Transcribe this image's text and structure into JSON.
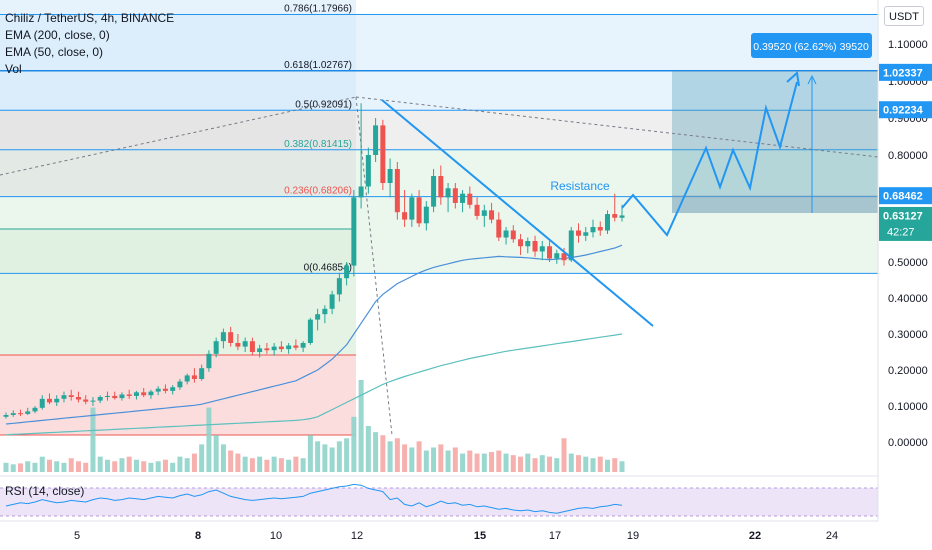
{
  "header": {
    "symbol_line": "Chiliz / TetherUS, 4h, BINANCE",
    "ema200": "EMA (200, close, 0)",
    "ema50": "EMA (50, close, 0)",
    "vol": "Vol",
    "currency_button": "USDT"
  },
  "rsi": {
    "label": "RSI (14, close)"
  },
  "colors": {
    "up": "#26a69a",
    "down": "#ef5350",
    "drawing": "#2196f3",
    "ema50": "#4a90d9",
    "ema200": "#5bc0be",
    "rsi_line": "#2196f3"
  },
  "annotations": {
    "resistance": "Resistance",
    "measure_box": "0.39520 (62.62%) 39520",
    "countdown": "42:27"
  },
  "chart_data": {
    "type": "candlestick",
    "title": "Chiliz / TetherUS, 4h, BINANCE",
    "x_ticks": [
      "5",
      "8",
      "10",
      "12",
      "15",
      "17",
      "19",
      "22",
      "24"
    ],
    "y_ticks": [
      "1.10000",
      "1.00000",
      "0.90000",
      "0.80000",
      "0.50000",
      "0.40000",
      "0.30000",
      "0.20000",
      "0.10000",
      "0.00000"
    ],
    "fibonacci": [
      {
        "label": "0.786(1.17966)",
        "price": 1.17966,
        "fill": "#e3f2fd"
      },
      {
        "label": "0.618(1.02767)",
        "price": 1.02767,
        "fill": "#e3f2fd"
      },
      {
        "label": "0.5(0.92091)",
        "price": 0.92091,
        "fill": "#f0f0f0"
      },
      {
        "label": "0.382(0.81415)",
        "price": 0.81415,
        "fill": "#e8f5e9"
      },
      {
        "label": "0.236(0.68206)",
        "price": 0.68206,
        "fill": "#e8f5e9"
      },
      {
        "label": "0(0.46854)",
        "price": 0.46854,
        "fill": "#fde3e3"
      }
    ],
    "price_tags": [
      {
        "label": "1.02337",
        "price": 1.02337
      },
      {
        "label": "0.92234",
        "price": 0.92234
      },
      {
        "label": "0.68462",
        "price": 0.68462
      },
      {
        "label": "0.63127",
        "price": 0.63127,
        "countdown": "42:27"
      }
    ],
    "candles": [
      {
        "o": 0.07,
        "h": 0.082,
        "l": 0.065,
        "c": 0.075
      },
      {
        "o": 0.075,
        "h": 0.088,
        "l": 0.07,
        "c": 0.08
      },
      {
        "o": 0.08,
        "h": 0.09,
        "l": 0.072,
        "c": 0.078
      },
      {
        "o": 0.078,
        "h": 0.095,
        "l": 0.075,
        "c": 0.085
      },
      {
        "o": 0.085,
        "h": 0.1,
        "l": 0.08,
        "c": 0.095
      },
      {
        "o": 0.095,
        "h": 0.13,
        "l": 0.09,
        "c": 0.12
      },
      {
        "o": 0.12,
        "h": 0.135,
        "l": 0.105,
        "c": 0.11
      },
      {
        "o": 0.11,
        "h": 0.13,
        "l": 0.1,
        "c": 0.12
      },
      {
        "o": 0.12,
        "h": 0.14,
        "l": 0.11,
        "c": 0.13
      },
      {
        "o": 0.13,
        "h": 0.145,
        "l": 0.115,
        "c": 0.125
      },
      {
        "o": 0.125,
        "h": 0.14,
        "l": 0.11,
        "c": 0.118
      },
      {
        "o": 0.118,
        "h": 0.13,
        "l": 0.105,
        "c": 0.112
      },
      {
        "o": 0.112,
        "h": 0.125,
        "l": 0.1,
        "c": 0.115
      },
      {
        "o": 0.115,
        "h": 0.13,
        "l": 0.108,
        "c": 0.125
      },
      {
        "o": 0.125,
        "h": 0.14,
        "l": 0.115,
        "c": 0.128
      },
      {
        "o": 0.128,
        "h": 0.14,
        "l": 0.118,
        "c": 0.122
      },
      {
        "o": 0.122,
        "h": 0.138,
        "l": 0.115,
        "c": 0.132
      },
      {
        "o": 0.132,
        "h": 0.145,
        "l": 0.12,
        "c": 0.128
      },
      {
        "o": 0.128,
        "h": 0.142,
        "l": 0.118,
        "c": 0.138
      },
      {
        "o": 0.138,
        "h": 0.15,
        "l": 0.125,
        "c": 0.13
      },
      {
        "o": 0.13,
        "h": 0.145,
        "l": 0.12,
        "c": 0.14
      },
      {
        "o": 0.14,
        "h": 0.155,
        "l": 0.13,
        "c": 0.148
      },
      {
        "o": 0.148,
        "h": 0.16,
        "l": 0.135,
        "c": 0.142
      },
      {
        "o": 0.142,
        "h": 0.158,
        "l": 0.132,
        "c": 0.152
      },
      {
        "o": 0.152,
        "h": 0.175,
        "l": 0.145,
        "c": 0.168
      },
      {
        "o": 0.168,
        "h": 0.19,
        "l": 0.16,
        "c": 0.185
      },
      {
        "o": 0.185,
        "h": 0.205,
        "l": 0.165,
        "c": 0.175
      },
      {
        "o": 0.175,
        "h": 0.215,
        "l": 0.17,
        "c": 0.205
      },
      {
        "o": 0.205,
        "h": 0.255,
        "l": 0.195,
        "c": 0.245
      },
      {
        "o": 0.245,
        "h": 0.29,
        "l": 0.235,
        "c": 0.28
      },
      {
        "o": 0.28,
        "h": 0.315,
        "l": 0.26,
        "c": 0.305
      },
      {
        "o": 0.305,
        "h": 0.32,
        "l": 0.265,
        "c": 0.275
      },
      {
        "o": 0.275,
        "h": 0.3,
        "l": 0.255,
        "c": 0.265
      },
      {
        "o": 0.265,
        "h": 0.29,
        "l": 0.25,
        "c": 0.28
      },
      {
        "o": 0.28,
        "h": 0.29,
        "l": 0.24,
        "c": 0.25
      },
      {
        "o": 0.25,
        "h": 0.27,
        "l": 0.235,
        "c": 0.26
      },
      {
        "o": 0.26,
        "h": 0.275,
        "l": 0.245,
        "c": 0.255
      },
      {
        "o": 0.255,
        "h": 0.275,
        "l": 0.24,
        "c": 0.265
      },
      {
        "o": 0.265,
        "h": 0.28,
        "l": 0.25,
        "c": 0.258
      },
      {
        "o": 0.258,
        "h": 0.275,
        "l": 0.245,
        "c": 0.268
      },
      {
        "o": 0.268,
        "h": 0.285,
        "l": 0.255,
        "c": 0.262
      },
      {
        "o": 0.262,
        "h": 0.28,
        "l": 0.25,
        "c": 0.275
      },
      {
        "o": 0.275,
        "h": 0.345,
        "l": 0.27,
        "c": 0.34
      },
      {
        "o": 0.34,
        "h": 0.37,
        "l": 0.31,
        "c": 0.355
      },
      {
        "o": 0.355,
        "h": 0.38,
        "l": 0.33,
        "c": 0.37
      },
      {
        "o": 0.37,
        "h": 0.42,
        "l": 0.355,
        "c": 0.41
      },
      {
        "o": 0.41,
        "h": 0.47,
        "l": 0.39,
        "c": 0.455
      },
      {
        "o": 0.455,
        "h": 0.5,
        "l": 0.435,
        "c": 0.49
      },
      {
        "o": 0.49,
        "h": 0.7,
        "l": 0.46,
        "c": 0.68
      },
      {
        "o": 0.68,
        "h": 0.94,
        "l": 0.65,
        "c": 0.71
      },
      {
        "o": 0.71,
        "h": 0.82,
        "l": 0.69,
        "c": 0.8
      },
      {
        "o": 0.8,
        "h": 0.9,
        "l": 0.78,
        "c": 0.88
      },
      {
        "o": 0.88,
        "h": 0.895,
        "l": 0.7,
        "c": 0.72
      },
      {
        "o": 0.72,
        "h": 0.79,
        "l": 0.68,
        "c": 0.76
      },
      {
        "o": 0.76,
        "h": 0.78,
        "l": 0.62,
        "c": 0.64
      },
      {
        "o": 0.64,
        "h": 0.7,
        "l": 0.6,
        "c": 0.62
      },
      {
        "o": 0.62,
        "h": 0.69,
        "l": 0.6,
        "c": 0.68
      },
      {
        "o": 0.68,
        "h": 0.7,
        "l": 0.6,
        "c": 0.61
      },
      {
        "o": 0.61,
        "h": 0.67,
        "l": 0.59,
        "c": 0.655
      },
      {
        "o": 0.655,
        "h": 0.76,
        "l": 0.64,
        "c": 0.74
      },
      {
        "o": 0.74,
        "h": 0.77,
        "l": 0.66,
        "c": 0.68
      },
      {
        "o": 0.68,
        "h": 0.72,
        "l": 0.64,
        "c": 0.705
      },
      {
        "o": 0.705,
        "h": 0.72,
        "l": 0.65,
        "c": 0.665
      },
      {
        "o": 0.665,
        "h": 0.7,
        "l": 0.64,
        "c": 0.69
      },
      {
        "o": 0.69,
        "h": 0.71,
        "l": 0.65,
        "c": 0.66
      },
      {
        "o": 0.66,
        "h": 0.68,
        "l": 0.62,
        "c": 0.63
      },
      {
        "o": 0.63,
        "h": 0.66,
        "l": 0.6,
        "c": 0.645
      },
      {
        "o": 0.645,
        "h": 0.665,
        "l": 0.61,
        "c": 0.62
      },
      {
        "o": 0.62,
        "h": 0.64,
        "l": 0.56,
        "c": 0.57
      },
      {
        "o": 0.57,
        "h": 0.6,
        "l": 0.55,
        "c": 0.59
      },
      {
        "o": 0.59,
        "h": 0.605,
        "l": 0.555,
        "c": 0.565
      },
      {
        "o": 0.565,
        "h": 0.58,
        "l": 0.52,
        "c": 0.545
      },
      {
        "o": 0.545,
        "h": 0.57,
        "l": 0.525,
        "c": 0.56
      },
      {
        "o": 0.56,
        "h": 0.575,
        "l": 0.515,
        "c": 0.53
      },
      {
        "o": 0.53,
        "h": 0.56,
        "l": 0.505,
        "c": 0.545
      },
      {
        "o": 0.545,
        "h": 0.56,
        "l": 0.5,
        "c": 0.51
      },
      {
        "o": 0.51,
        "h": 0.535,
        "l": 0.495,
        "c": 0.525
      },
      {
        "o": 0.525,
        "h": 0.54,
        "l": 0.49,
        "c": 0.505
      },
      {
        "o": 0.505,
        "h": 0.6,
        "l": 0.5,
        "c": 0.59
      },
      {
        "o": 0.59,
        "h": 0.61,
        "l": 0.555,
        "c": 0.575
      },
      {
        "o": 0.575,
        "h": 0.6,
        "l": 0.56,
        "c": 0.585
      },
      {
        "o": 0.585,
        "h": 0.62,
        "l": 0.57,
        "c": 0.6
      },
      {
        "o": 0.6,
        "h": 0.615,
        "l": 0.575,
        "c": 0.59
      },
      {
        "o": 0.59,
        "h": 0.645,
        "l": 0.58,
        "c": 0.635
      },
      {
        "o": 0.635,
        "h": 0.69,
        "l": 0.615,
        "c": 0.625
      },
      {
        "o": 0.625,
        "h": 0.66,
        "l": 0.615,
        "c": 0.63127
      }
    ],
    "volume": [
      0.3,
      0.25,
      0.28,
      0.35,
      0.3,
      0.5,
      0.4,
      0.35,
      0.3,
      0.45,
      0.35,
      0.3,
      2.1,
      0.5,
      0.4,
      0.35,
      0.45,
      0.5,
      0.4,
      0.35,
      0.3,
      0.35,
      0.4,
      0.3,
      0.5,
      0.45,
      0.6,
      0.9,
      2.1,
      1.2,
      0.9,
      0.7,
      0.6,
      0.5,
      0.45,
      0.5,
      0.4,
      0.5,
      0.45,
      0.4,
      0.5,
      0.45,
      1.2,
      1.0,
      0.9,
      0.8,
      1.0,
      1.1,
      1.8,
      3.0,
      1.5,
      1.3,
      1.2,
      1.0,
      1.1,
      0.9,
      0.8,
      1.0,
      0.7,
      0.8,
      0.9,
      0.7,
      0.8,
      0.6,
      0.7,
      0.6,
      0.6,
      0.65,
      0.7,
      0.6,
      0.55,
      0.5,
      0.6,
      0.45,
      0.55,
      0.5,
      0.45,
      1.1,
      0.6,
      0.55,
      0.5,
      0.45,
      0.5,
      0.4,
      0.45,
      0.35
    ],
    "ema50": [
      0.05,
      0.052,
      0.054,
      0.056,
      0.058,
      0.06,
      0.062,
      0.064,
      0.066,
      0.068,
      0.07,
      0.072,
      0.074,
      0.076,
      0.078,
      0.08,
      0.082,
      0.084,
      0.086,
      0.088,
      0.09,
      0.092,
      0.094,
      0.096,
      0.098,
      0.1,
      0.102,
      0.105,
      0.11,
      0.115,
      0.12,
      0.125,
      0.13,
      0.135,
      0.14,
      0.145,
      0.15,
      0.155,
      0.16,
      0.165,
      0.17,
      0.18,
      0.19,
      0.2,
      0.215,
      0.23,
      0.25,
      0.27,
      0.3,
      0.33,
      0.36,
      0.39,
      0.41,
      0.425,
      0.44,
      0.45,
      0.46,
      0.47,
      0.478,
      0.485,
      0.49,
      0.495,
      0.5,
      0.505,
      0.508,
      0.51,
      0.512,
      0.514,
      0.516,
      0.515,
      0.514,
      0.513,
      0.512,
      0.51,
      0.508,
      0.507,
      0.508,
      0.51,
      0.513,
      0.516,
      0.52,
      0.525,
      0.53,
      0.535,
      0.54,
      0.548
    ],
    "ema200": [
      0.02,
      0.021,
      0.022,
      0.023,
      0.024,
      0.025,
      0.026,
      0.027,
      0.028,
      0.029,
      0.03,
      0.031,
      0.032,
      0.033,
      0.034,
      0.035,
      0.036,
      0.037,
      0.038,
      0.039,
      0.04,
      0.041,
      0.042,
      0.043,
      0.044,
      0.045,
      0.046,
      0.047,
      0.048,
      0.049,
      0.05,
      0.051,
      0.052,
      0.053,
      0.054,
      0.055,
      0.056,
      0.057,
      0.058,
      0.059,
      0.06,
      0.062,
      0.065,
      0.07,
      0.08,
      0.09,
      0.1,
      0.11,
      0.12,
      0.13,
      0.14,
      0.15,
      0.16,
      0.168,
      0.175,
      0.182,
      0.188,
      0.194,
      0.2,
      0.206,
      0.212,
      0.217,
      0.222,
      0.227,
      0.232,
      0.236,
      0.24,
      0.244,
      0.248,
      0.252,
      0.255,
      0.258,
      0.261,
      0.264,
      0.267,
      0.27,
      0.273,
      0.276,
      0.279,
      0.282,
      0.285,
      0.288,
      0.291,
      0.294,
      0.297,
      0.3
    ],
    "rsi": [
      50,
      52,
      54,
      53,
      55,
      58,
      56,
      54,
      55,
      57,
      56,
      55,
      58,
      60,
      59,
      57,
      58,
      60,
      59,
      58,
      60,
      62,
      61,
      60,
      63,
      65,
      62,
      64,
      68,
      70,
      66,
      62,
      60,
      58,
      57,
      58,
      59,
      60,
      59,
      60,
      61,
      62,
      66,
      68,
      70,
      72,
      74,
      75,
      77,
      76,
      72,
      70,
      68,
      58,
      60,
      52,
      50,
      54,
      49,
      52,
      56,
      53,
      54,
      51,
      52,
      49,
      50,
      48,
      46,
      47,
      45,
      44,
      45,
      43,
      44,
      42,
      41,
      43,
      45,
      47,
      48,
      47,
      49,
      50,
      52,
      51
    ]
  }
}
